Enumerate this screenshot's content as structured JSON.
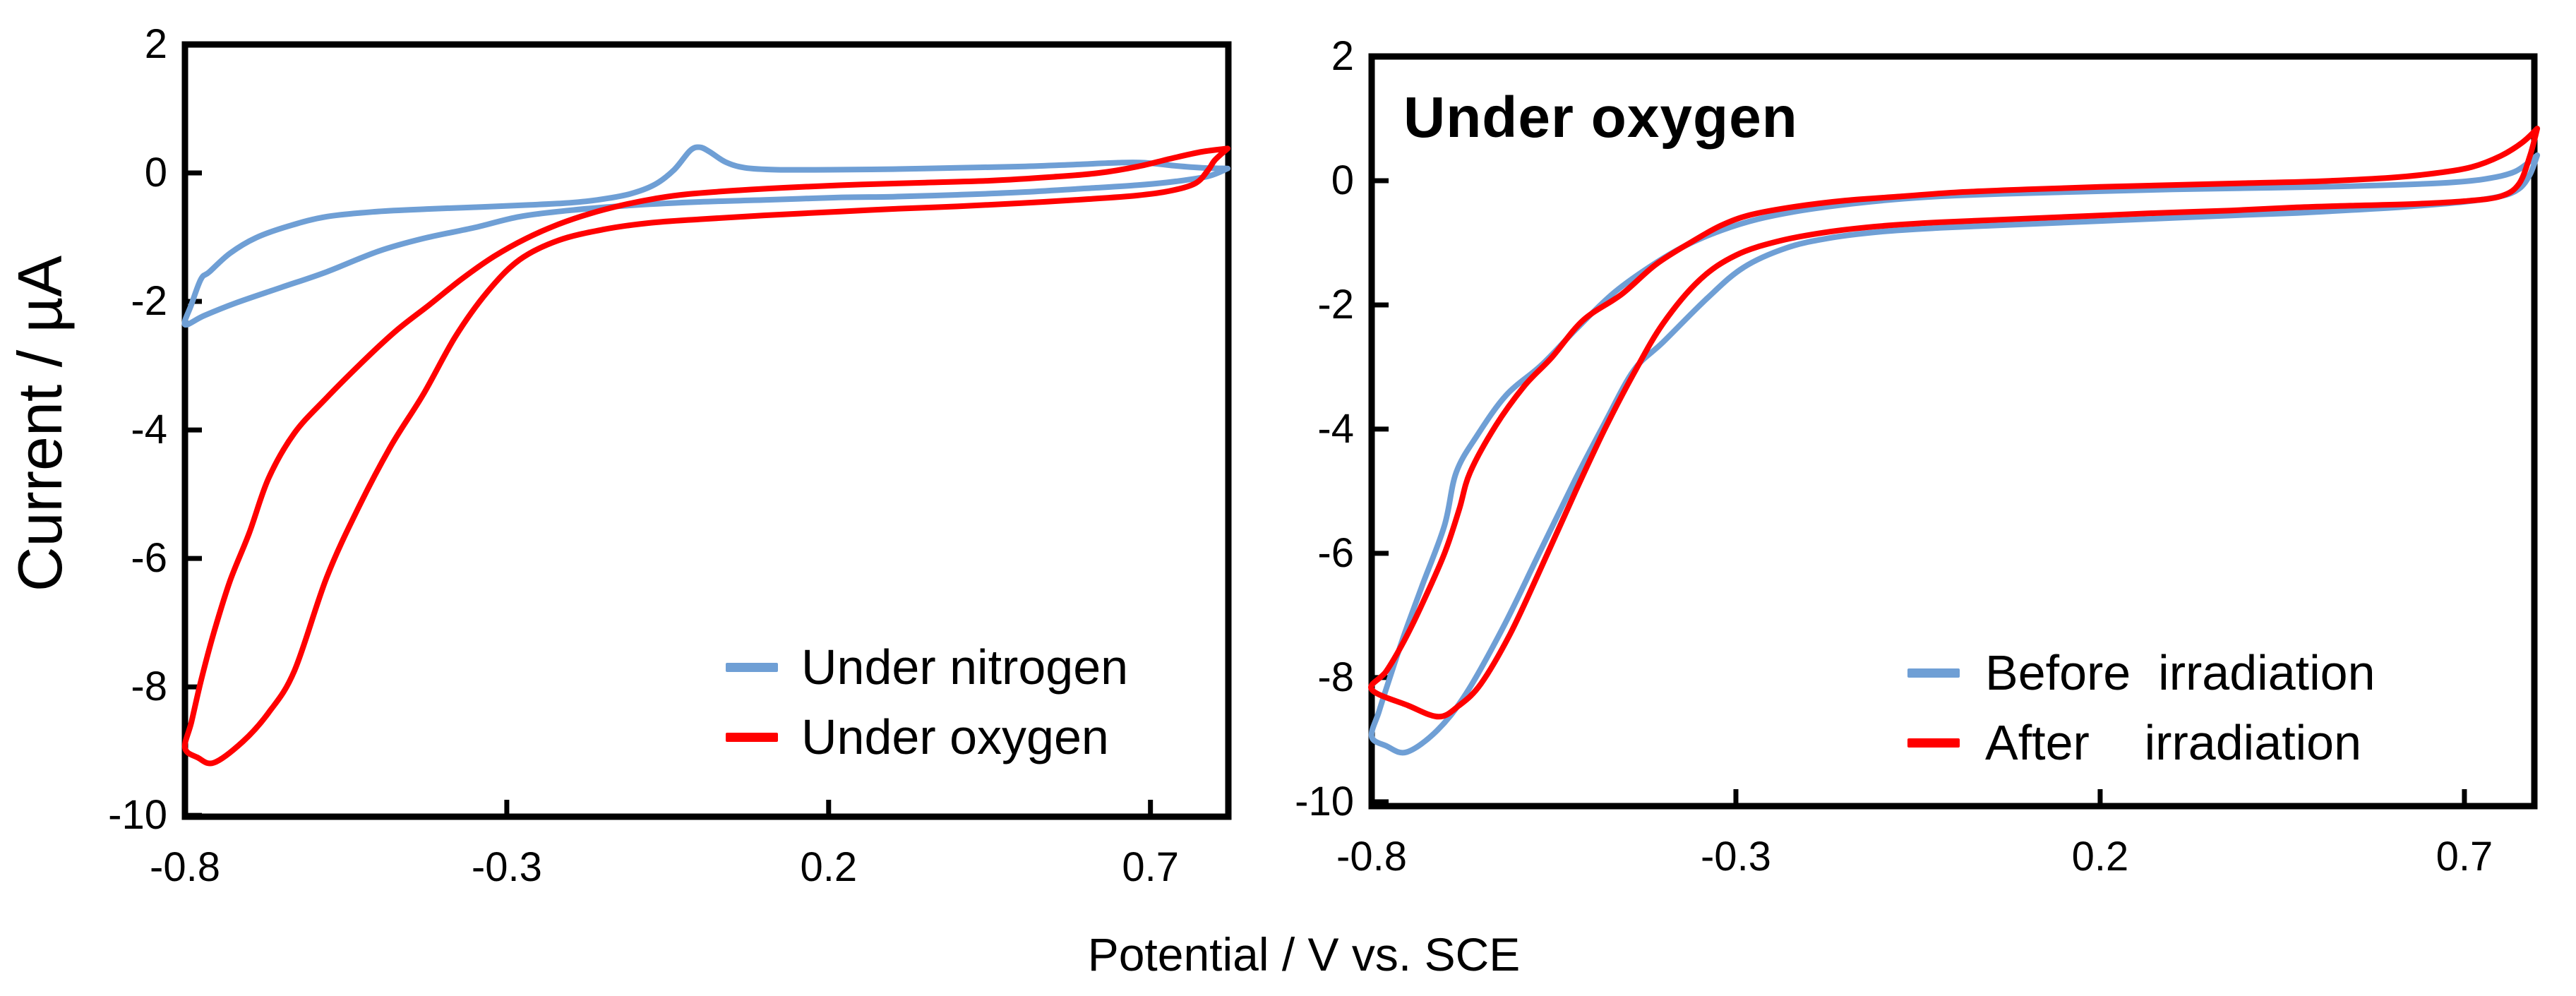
{
  "figure": {
    "x_axis_label": "Potential / V vs. SCE",
    "y_axis_label": "Current / µA",
    "background_color": "#ffffff",
    "axis_color": "#000000"
  },
  "chart_data": [
    {
      "id": "left-cv",
      "type": "line",
      "title": "",
      "xlabel": "Potential / V vs. SCE",
      "ylabel": "Current / µA",
      "x_domain": [
        -0.8,
        0.821
      ],
      "y_domain": [
        -10.02,
        2.0
      ],
      "grid": false,
      "legend_position": "inside-bottom-right",
      "x_ticks": [
        {
          "value": -0.8,
          "label": "-0.8"
        },
        {
          "value": -0.3,
          "label": "-0.3"
        },
        {
          "value": 0.2,
          "label": "0.2"
        },
        {
          "value": 0.7,
          "label": "0.7"
        }
      ],
      "y_ticks": [
        {
          "value": 2,
          "label": "2"
        },
        {
          "value": 0,
          "label": "0"
        },
        {
          "value": -2,
          "label": "-2"
        },
        {
          "value": -4,
          "label": "-4"
        },
        {
          "value": -6,
          "label": "-6"
        },
        {
          "value": -8,
          "label": "-8"
        },
        {
          "value": -10,
          "label": "-10"
        }
      ],
      "series": [
        {
          "name": "Under nitrogen",
          "legend_label": "Under nitrogen",
          "color": "#6F9FD5",
          "sweep_to_negative": [
            [
              0.82,
              0.07
            ],
            [
              0.79,
              -0.05
            ],
            [
              0.74,
              -0.13
            ],
            [
              0.68,
              -0.19
            ],
            [
              0.6,
              -0.24
            ],
            [
              0.5,
              -0.3
            ],
            [
              0.4,
              -0.34
            ],
            [
              0.3,
              -0.37
            ],
            [
              0.22,
              -0.38
            ],
            [
              0.1,
              -0.42
            ],
            [
              0,
              -0.45
            ],
            [
              -0.1,
              -0.5
            ],
            [
              -0.2,
              -0.58
            ],
            [
              -0.28,
              -0.68
            ],
            [
              -0.35,
              -0.85
            ],
            [
              -0.43,
              -1.02
            ],
            [
              -0.5,
              -1.22
            ],
            [
              -0.58,
              -1.54
            ],
            [
              -0.65,
              -1.78
            ],
            [
              -0.72,
              -2.02
            ],
            [
              -0.77,
              -2.22
            ],
            [
              -0.8,
              -2.36
            ]
          ],
          "sweep_to_positive": [
            [
              -0.8,
              -2.36
            ],
            [
              -0.79,
              -2.05
            ],
            [
              -0.775,
              -1.65
            ],
            [
              -0.762,
              -1.54
            ],
            [
              -0.73,
              -1.25
            ],
            [
              -0.69,
              -1.01
            ],
            [
              -0.64,
              -0.83
            ],
            [
              -0.58,
              -0.68
            ],
            [
              -0.5,
              -0.6
            ],
            [
              -0.42,
              -0.56
            ],
            [
              -0.34,
              -0.53
            ],
            [
              -0.27,
              -0.5
            ],
            [
              -0.21,
              -0.47
            ],
            [
              -0.16,
              -0.42
            ],
            [
              -0.11,
              -0.33
            ],
            [
              -0.07,
              -0.18
            ],
            [
              -0.04,
              0.05
            ],
            [
              -0.015,
              0.35
            ],
            [
              0,
              0.4
            ],
            [
              0.015,
              0.33
            ],
            [
              0.04,
              0.17
            ],
            [
              0.07,
              0.08
            ],
            [
              0.12,
              0.05
            ],
            [
              0.2,
              0.05
            ],
            [
              0.3,
              0.06
            ],
            [
              0.4,
              0.08
            ],
            [
              0.5,
              0.1
            ],
            [
              0.58,
              0.13
            ],
            [
              0.65,
              0.16
            ],
            [
              0.69,
              0.16
            ],
            [
              0.74,
              0.11
            ],
            [
              0.78,
              0.08
            ],
            [
              0.82,
              0.07
            ]
          ]
        },
        {
          "name": "Under oxygen",
          "legend_label": "Under oxygen",
          "color": "#FF0000",
          "sweep_to_negative": [
            [
              0.82,
              0.38
            ],
            [
              0.8,
              0.2
            ],
            [
              0.79,
              0.05
            ],
            [
              0.77,
              -0.16
            ],
            [
              0.73,
              -0.28
            ],
            [
              0.68,
              -0.35
            ],
            [
              0.6,
              -0.41
            ],
            [
              0.5,
              -0.47
            ],
            [
              0.4,
              -0.52
            ],
            [
              0.3,
              -0.56
            ],
            [
              0.22,
              -0.6
            ],
            [
              0.1,
              -0.66
            ],
            [
              0,
              -0.72
            ],
            [
              -0.08,
              -0.78
            ],
            [
              -0.15,
              -0.88
            ],
            [
              -0.22,
              -1.05
            ],
            [
              -0.28,
              -1.35
            ],
            [
              -0.33,
              -1.85
            ],
            [
              -0.38,
              -2.55
            ],
            [
              -0.43,
              -3.45
            ],
            [
              -0.48,
              -4.25
            ],
            [
              -0.53,
              -5.2
            ],
            [
              -0.58,
              -6.3
            ],
            [
              -0.63,
              -7.75
            ],
            [
              -0.67,
              -8.4
            ],
            [
              -0.71,
              -8.85
            ],
            [
              -0.755,
              -9.18
            ],
            [
              -0.78,
              -9.1
            ],
            [
              -0.8,
              -8.95
            ]
          ],
          "sweep_to_positive": [
            [
              -0.8,
              -8.95
            ],
            [
              -0.79,
              -8.55
            ],
            [
              -0.775,
              -7.9
            ],
            [
              -0.755,
              -7.15
            ],
            [
              -0.73,
              -6.35
            ],
            [
              -0.7,
              -5.6
            ],
            [
              -0.67,
              -4.75
            ],
            [
              -0.63,
              -4.05
            ],
            [
              -0.58,
              -3.5
            ],
            [
              -0.52,
              -2.9
            ],
            [
              -0.47,
              -2.44
            ],
            [
              -0.42,
              -2.05
            ],
            [
              -0.37,
              -1.65
            ],
            [
              -0.32,
              -1.3
            ],
            [
              -0.27,
              -1.02
            ],
            [
              -0.22,
              -0.8
            ],
            [
              -0.17,
              -0.63
            ],
            [
              -0.12,
              -0.5
            ],
            [
              -0.07,
              -0.4
            ],
            [
              -0.02,
              -0.33
            ],
            [
              0.06,
              -0.27
            ],
            [
              0.15,
              -0.22
            ],
            [
              0.25,
              -0.18
            ],
            [
              0.35,
              -0.15
            ],
            [
              0.45,
              -0.12
            ],
            [
              0.55,
              -0.06
            ],
            [
              0.62,
              0
            ],
            [
              0.68,
              0.1
            ],
            [
              0.73,
              0.22
            ],
            [
              0.78,
              0.33
            ],
            [
              0.82,
              0.38
            ]
          ]
        }
      ]
    },
    {
      "id": "right-cv",
      "type": "line",
      "title": "Under oxygen",
      "xlabel": "Potential / V vs. SCE",
      "ylabel": "Current / µA",
      "x_domain": [
        -0.8,
        0.796
      ],
      "y_domain": [
        -10.07,
        2.0
      ],
      "grid": false,
      "legend_position": "inside-bottom-right",
      "x_ticks": [
        {
          "value": -0.8,
          "label": "-0.8"
        },
        {
          "value": -0.3,
          "label": "-0.3"
        },
        {
          "value": 0.2,
          "label": "0.2"
        },
        {
          "value": 0.7,
          "label": "0.7"
        }
      ],
      "y_ticks": [
        {
          "value": 2,
          "label": "2"
        },
        {
          "value": 0,
          "label": "0"
        },
        {
          "value": -2,
          "label": "-2"
        },
        {
          "value": -4,
          "label": "-4"
        },
        {
          "value": -6,
          "label": "-6"
        },
        {
          "value": -8,
          "label": "-8"
        },
        {
          "value": -10,
          "label": "-10"
        }
      ],
      "series": [
        {
          "name": "Before irradiation",
          "legend_label": "Before  irradiation",
          "color": "#6F9FD5",
          "sweep_to_negative": [
            [
              0.8,
              0.41
            ],
            [
              0.79,
              0.1
            ],
            [
              0.775,
              -0.13
            ],
            [
              0.75,
              -0.25
            ],
            [
              0.7,
              -0.34
            ],
            [
              0.62,
              -0.42
            ],
            [
              0.55,
              -0.47
            ],
            [
              0.47,
              -0.52
            ],
            [
              0.38,
              -0.56
            ],
            [
              0.28,
              -0.61
            ],
            [
              0.18,
              -0.66
            ],
            [
              0.08,
              -0.71
            ],
            [
              -0.02,
              -0.76
            ],
            [
              -0.1,
              -0.82
            ],
            [
              -0.17,
              -0.92
            ],
            [
              -0.23,
              -1.08
            ],
            [
              -0.29,
              -1.4
            ],
            [
              -0.34,
              -1.9
            ],
            [
              -0.4,
              -2.6
            ],
            [
              -0.44,
              -3.05
            ],
            [
              -0.48,
              -3.9
            ],
            [
              -0.52,
              -4.8
            ],
            [
              -0.57,
              -6
            ],
            [
              -0.62,
              -7.2
            ],
            [
              -0.67,
              -8.25
            ],
            [
              -0.71,
              -8.85
            ],
            [
              -0.752,
              -9.2
            ],
            [
              -0.78,
              -9.1
            ],
            [
              -0.8,
              -8.95
            ]
          ],
          "sweep_to_positive": [
            [
              -0.8,
              -8.95
            ],
            [
              -0.79,
              -8.55
            ],
            [
              -0.775,
              -8
            ],
            [
              -0.755,
              -7.3
            ],
            [
              -0.73,
              -6.5
            ],
            [
              -0.7,
              -5.55
            ],
            [
              -0.684,
              -4.7
            ],
            [
              -0.655,
              -4.1
            ],
            [
              -0.615,
              -3.45
            ],
            [
              -0.567,
              -2.97
            ],
            [
              -0.52,
              -2.4
            ],
            [
              -0.47,
              -1.83
            ],
            [
              -0.42,
              -1.4
            ],
            [
              -0.37,
              -1.05
            ],
            [
              -0.32,
              -0.8
            ],
            [
              -0.27,
              -0.62
            ],
            [
              -0.21,
              -0.48
            ],
            [
              -0.14,
              -0.37
            ],
            [
              -0.07,
              -0.29
            ],
            [
              0,
              -0.24
            ],
            [
              0.1,
              -0.2
            ],
            [
              0.2,
              -0.17
            ],
            [
              0.3,
              -0.14
            ],
            [
              0.4,
              -0.12
            ],
            [
              0.5,
              -0.1
            ],
            [
              0.6,
              -0.07
            ],
            [
              0.68,
              -0.03
            ],
            [
              0.73,
              0.03
            ],
            [
              0.77,
              0.15
            ],
            [
              0.8,
              0.41
            ]
          ]
        },
        {
          "name": "After irradiation",
          "legend_label": "After    irradiation",
          "color": "#FF0000",
          "sweep_to_negative": [
            [
              0.8,
              0.84
            ],
            [
              0.79,
              0.4
            ],
            [
              0.775,
              -0.05
            ],
            [
              0.75,
              -0.25
            ],
            [
              0.7,
              -0.33
            ],
            [
              0.62,
              -0.38
            ],
            [
              0.55,
              -0.4
            ],
            [
              0.47,
              -0.43
            ],
            [
              0.38,
              -0.48
            ],
            [
              0.28,
              -0.52
            ],
            [
              0.18,
              -0.57
            ],
            [
              0.08,
              -0.62
            ],
            [
              -0.02,
              -0.67
            ],
            [
              -0.1,
              -0.73
            ],
            [
              -0.17,
              -0.82
            ],
            [
              -0.24,
              -0.97
            ],
            [
              -0.3,
              -1.2
            ],
            [
              -0.35,
              -1.6
            ],
            [
              -0.4,
              -2.3
            ],
            [
              -0.44,
              -3.1
            ],
            [
              -0.48,
              -4
            ],
            [
              -0.52,
              -5
            ],
            [
              -0.57,
              -6.3
            ],
            [
              -0.61,
              -7.3
            ],
            [
              -0.65,
              -8.1
            ],
            [
              -0.68,
              -8.45
            ],
            [
              -0.708,
              -8.63
            ],
            [
              -0.75,
              -8.45
            ],
            [
              -0.8,
              -8.19
            ]
          ],
          "sweep_to_positive": [
            [
              -0.8,
              -8.19
            ],
            [
              -0.78,
              -7.9
            ],
            [
              -0.755,
              -7.4
            ],
            [
              -0.73,
              -6.8
            ],
            [
              -0.7,
              -6
            ],
            [
              -0.68,
              -5.3
            ],
            [
              -0.665,
              -4.7
            ],
            [
              -0.63,
              -3.95
            ],
            [
              -0.59,
              -3.3
            ],
            [
              -0.553,
              -2.85
            ],
            [
              -0.51,
              -2.25
            ],
            [
              -0.457,
              -1.83
            ],
            [
              -0.41,
              -1.35
            ],
            [
              -0.36,
              -0.98
            ],
            [
              -0.32,
              -0.72
            ],
            [
              -0.28,
              -0.55
            ],
            [
              -0.22,
              -0.42
            ],
            [
              -0.15,
              -0.32
            ],
            [
              -0.07,
              -0.25
            ],
            [
              0,
              -0.19
            ],
            [
              0.1,
              -0.14
            ],
            [
              0.2,
              -0.1
            ],
            [
              0.3,
              -0.07
            ],
            [
              0.4,
              -0.04
            ],
            [
              0.5,
              -0.01
            ],
            [
              0.6,
              0.05
            ],
            [
              0.66,
              0.12
            ],
            [
              0.71,
              0.22
            ],
            [
              0.75,
              0.4
            ],
            [
              0.78,
              0.62
            ],
            [
              0.8,
              0.84
            ]
          ]
        }
      ]
    }
  ]
}
